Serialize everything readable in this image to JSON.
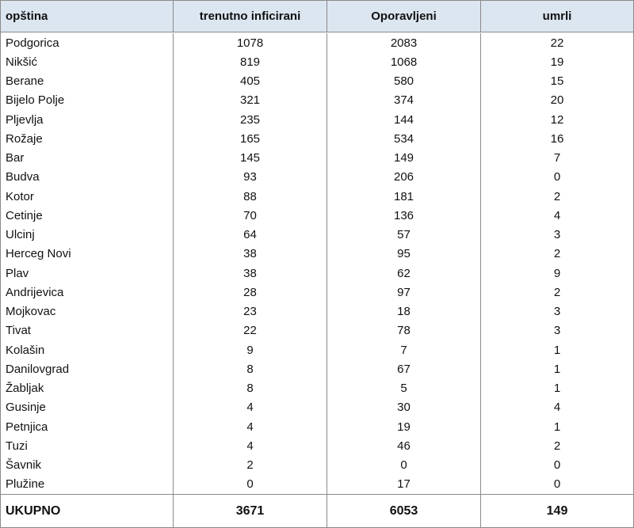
{
  "table": {
    "header": [
      "opština",
      "trenutno inficirani",
      "Oporavljeni",
      "umrli"
    ],
    "rows": [
      [
        "Podgorica",
        1078,
        2083,
        22
      ],
      [
        "Nikšić",
        819,
        1068,
        19
      ],
      [
        "Berane",
        405,
        580,
        15
      ],
      [
        "Bijelo Polje",
        321,
        374,
        20
      ],
      [
        "Pljevlja",
        235,
        144,
        12
      ],
      [
        "Rožaje",
        165,
        534,
        16
      ],
      [
        "Bar",
        145,
        149,
        7
      ],
      [
        "Budva",
        93,
        206,
        0
      ],
      [
        "Kotor",
        88,
        181,
        2
      ],
      [
        "Cetinje",
        70,
        136,
        4
      ],
      [
        "Ulcinj",
        64,
        57,
        3
      ],
      [
        "Herceg Novi",
        38,
        95,
        2
      ],
      [
        "Plav",
        38,
        62,
        9
      ],
      [
        "Andrijevica",
        28,
        97,
        2
      ],
      [
        "Mojkovac",
        23,
        18,
        3
      ],
      [
        "Tivat",
        22,
        78,
        3
      ],
      [
        "Kolašin",
        9,
        7,
        1
      ],
      [
        "Danilovgrad",
        8,
        67,
        1
      ],
      [
        "Žabljak",
        8,
        5,
        1
      ],
      [
        "Gusinje",
        4,
        30,
        4
      ],
      [
        "Petnjica",
        4,
        19,
        1
      ],
      [
        "Tuzi",
        4,
        46,
        2
      ],
      [
        "Šavnik",
        2,
        0,
        0
      ],
      [
        "Plužine",
        0,
        17,
        0
      ]
    ],
    "total": [
      "UKUPNO",
      3671,
      6053,
      149
    ]
  }
}
